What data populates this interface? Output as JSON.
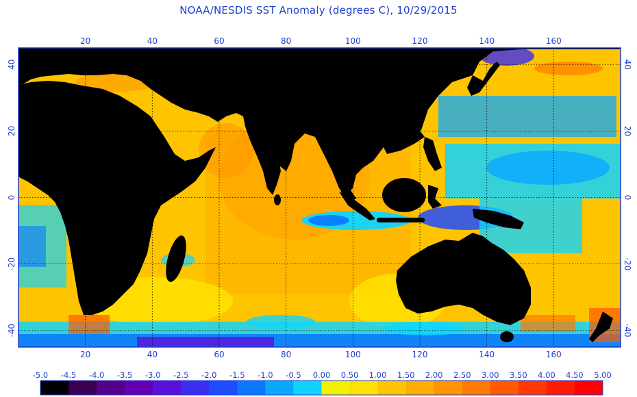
{
  "title": "NOAA/NESDIS SST Anomaly (degrees C), 10/29/2015",
  "map": {
    "lon_range": [
      0,
      180
    ],
    "lat_range": [
      -45,
      45
    ],
    "lon_ticks": [
      20,
      40,
      60,
      80,
      100,
      120,
      140,
      160
    ],
    "lat_ticks": [
      40,
      20,
      0,
      -20,
      -40
    ],
    "lon_tick_labels": [
      "20",
      "40",
      "60",
      "80",
      "100",
      "120",
      "140",
      "160"
    ],
    "lat_tick_labels": [
      "40",
      "20",
      "0",
      "-20",
      "-40"
    ],
    "grid": "dotted",
    "land_color": "#000000",
    "frame_color": "#1f3fd0"
  },
  "legend": {
    "labels": [
      "-5.0",
      "-4.5",
      "-4.0",
      "-3.5",
      "-3.0",
      "-2.5",
      "-2.0",
      "-1.5",
      "-1.0",
      "-0.5",
      "0.00",
      "0.50",
      "1.00",
      "1.50",
      "2.00",
      "2.50",
      "3.00",
      "3.50",
      "4.00",
      "4.50",
      "5.00"
    ],
    "colors": [
      "#000000",
      "#3a0050",
      "#55008a",
      "#6400b4",
      "#5a10d8",
      "#3b2ef0",
      "#1e4cff",
      "#0a78ff",
      "#0aa8ff",
      "#10d4ff",
      "#f2f200",
      "#ffe000",
      "#ffc400",
      "#ffac00",
      "#ff9400",
      "#ff7a00",
      "#ff5a00",
      "#ff3800",
      "#ff1c00",
      "#ff0000"
    ]
  }
}
